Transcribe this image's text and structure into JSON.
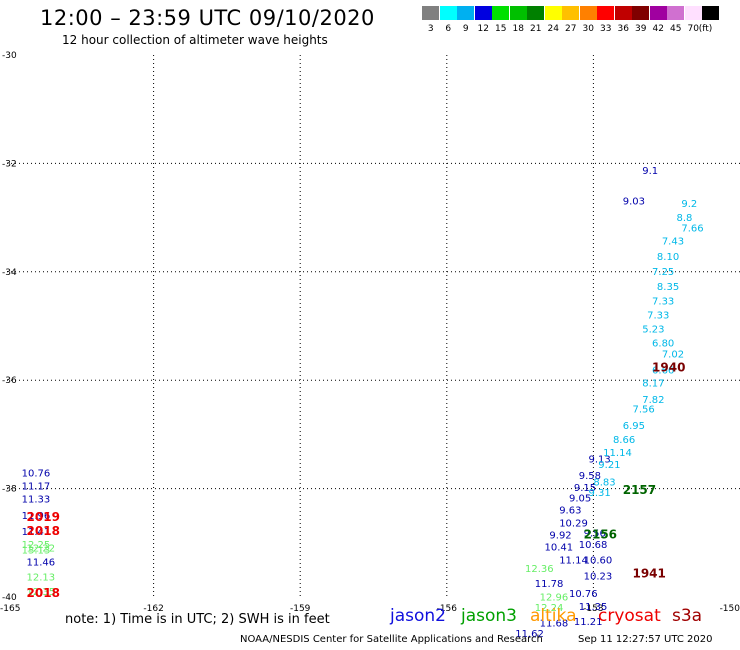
{
  "header": {
    "title": "12:00 – 23:59 UTC 09/10/2020",
    "subtitle": "12 hour collection of altimeter wave heights"
  },
  "legend": {
    "unit": "(ft)",
    "items": [
      {
        "label": "3",
        "color": "#808080"
      },
      {
        "label": "6",
        "color": "#00ffff"
      },
      {
        "label": "9",
        "color": "#00b0f0"
      },
      {
        "label": "12",
        "color": "#0000e0"
      },
      {
        "label": "15",
        "color": "#00e000"
      },
      {
        "label": "18",
        "color": "#00c000"
      },
      {
        "label": "21",
        "color": "#008000"
      },
      {
        "label": "24",
        "color": "#ffff00"
      },
      {
        "label": "27",
        "color": "#ffc000"
      },
      {
        "label": "30",
        "color": "#ff8000"
      },
      {
        "label": "33",
        "color": "#ff0000"
      },
      {
        "label": "36",
        "color": "#c00000"
      },
      {
        "label": "39",
        "color": "#800000"
      },
      {
        "label": "42",
        "color": "#a000a0"
      },
      {
        "label": "45",
        "color": "#d070d0"
      },
      {
        "label": "70",
        "color": "#ffe0ff"
      },
      {
        "label": "",
        "color": "#000000"
      }
    ]
  },
  "chart_data": {
    "type": "scatter",
    "xlim": [
      -165,
      -150
    ],
    "ylim": [
      -40,
      -30
    ],
    "xticks": [
      {
        "value": -165,
        "label": "-165"
      },
      {
        "value": -162,
        "label": "-162"
      },
      {
        "value": -159,
        "label": "-159"
      },
      {
        "value": -156,
        "label": "-156"
      },
      {
        "value": -153,
        "label": "-153"
      },
      {
        "value": -150,
        "label": "-150"
      }
    ],
    "yticks": [
      {
        "value": -30,
        "label": "-30"
      },
      {
        "value": -32,
        "label": "-32"
      },
      {
        "value": -34,
        "label": "-34"
      },
      {
        "value": -36,
        "label": "-36"
      },
      {
        "value": -38,
        "label": "-38"
      },
      {
        "value": -40,
        "label": "-40"
      }
    ],
    "grid": "dotted",
    "series": [
      {
        "color": "#0000aa",
        "points": [
          {
            "x": -164.7,
            "y": -37.78,
            "label": "10.76"
          },
          {
            "x": -164.7,
            "y": -38.02,
            "label": "11.17"
          },
          {
            "x": -164.7,
            "y": -38.26,
            "label": "11.33"
          },
          {
            "x": -164.7,
            "y": -38.56,
            "label": "11.96"
          },
          {
            "x": -164.7,
            "y": -38.86,
            "label": "11.41"
          },
          {
            "x": -164.6,
            "y": -39.42,
            "label": "11.46"
          },
          {
            "x": -152.0,
            "y": -32.2,
            "label": "9.1"
          },
          {
            "x": -152.4,
            "y": -32.76,
            "label": "9.03"
          },
          {
            "x": -153.1,
            "y": -37.52,
            "label": "9.13"
          },
          {
            "x": -153.3,
            "y": -37.82,
            "label": "9.58"
          },
          {
            "x": -153.4,
            "y": -38.04,
            "label": "9.15"
          },
          {
            "x": -153.5,
            "y": -38.24,
            "label": "9.05"
          },
          {
            "x": -153.7,
            "y": -38.46,
            "label": "9.63"
          },
          {
            "x": -153.7,
            "y": -38.7,
            "label": "10.29"
          },
          {
            "x": -153.2,
            "y": -38.88,
            "label": "9.56"
          },
          {
            "x": -153.9,
            "y": -38.92,
            "label": "9.92"
          },
          {
            "x": -154.0,
            "y": -39.14,
            "label": "10.41"
          },
          {
            "x": -153.3,
            "y": -39.1,
            "label": "10.68"
          },
          {
            "x": -153.7,
            "y": -39.38,
            "label": "11.14"
          },
          {
            "x": -153.2,
            "y": -39.38,
            "label": "10.60"
          },
          {
            "x": -153.2,
            "y": -39.68,
            "label": "10.23"
          },
          {
            "x": -154.2,
            "y": -39.82,
            "label": "11.78"
          },
          {
            "x": -153.5,
            "y": -40.0,
            "label": "10.76"
          },
          {
            "x": -153.3,
            "y": -40.24,
            "label": "11.35"
          },
          {
            "x": -153.4,
            "y": -40.52,
            "label": "11.21"
          },
          {
            "x": -154.1,
            "y": -40.54,
            "label": "11.68"
          },
          {
            "x": -154.6,
            "y": -40.74,
            "label": "11.62"
          }
        ]
      },
      {
        "color": "#66ee66",
        "points": [
          {
            "x": -164.7,
            "y": -39.1,
            "label": "12.25"
          },
          {
            "x": -164.7,
            "y": -39.2,
            "label": "13.13"
          },
          {
            "x": -164.6,
            "y": -39.16,
            "label": "12.22"
          },
          {
            "x": -164.6,
            "y": -39.7,
            "label": "12.13"
          },
          {
            "x": -164.6,
            "y": -39.96,
            "label": "12.35"
          },
          {
            "x": -154.4,
            "y": -39.54,
            "label": "12.36"
          },
          {
            "x": -154.1,
            "y": -40.06,
            "label": "12.96"
          },
          {
            "x": -154.2,
            "y": -40.26,
            "label": "12.24"
          }
        ]
      },
      {
        "color": "#00b8e8",
        "points": [
          {
            "x": -151.2,
            "y": -32.8,
            "label": "9.2"
          },
          {
            "x": -151.3,
            "y": -33.06,
            "label": "8.8"
          },
          {
            "x": -151.2,
            "y": -33.26,
            "label": "7.66"
          },
          {
            "x": -151.6,
            "y": -33.5,
            "label": "7.43"
          },
          {
            "x": -151.7,
            "y": -33.78,
            "label": "8.10"
          },
          {
            "x": -151.8,
            "y": -34.06,
            "label": "7.25"
          },
          {
            "x": -151.7,
            "y": -34.34,
            "label": "8.35"
          },
          {
            "x": -151.8,
            "y": -34.6,
            "label": "7.33"
          },
          {
            "x": -151.9,
            "y": -34.86,
            "label": "7.33"
          },
          {
            "x": -152.0,
            "y": -35.12,
            "label": "5.23"
          },
          {
            "x": -151.8,
            "y": -35.38,
            "label": "6.80"
          },
          {
            "x": -151.6,
            "y": -35.58,
            "label": "7.02"
          },
          {
            "x": -151.8,
            "y": -35.88,
            "label": "6.66"
          },
          {
            "x": -152.0,
            "y": -36.12,
            "label": "8.17"
          },
          {
            "x": -152.0,
            "y": -36.42,
            "label": "7.82"
          },
          {
            "x": -152.2,
            "y": -36.6,
            "label": "7.56"
          },
          {
            "x": -152.4,
            "y": -36.9,
            "label": "6.95"
          },
          {
            "x": -152.6,
            "y": -37.16,
            "label": "8.66"
          },
          {
            "x": -152.8,
            "y": -37.4,
            "label": "11.14"
          },
          {
            "x": -152.9,
            "y": -37.62,
            "label": "9.21"
          },
          {
            "x": -153.0,
            "y": -37.94,
            "label": "8.83"
          },
          {
            "x": -153.1,
            "y": -38.14,
            "label": "9.31"
          }
        ]
      },
      {
        "color": "#006400",
        "points": [
          {
            "x": -152.4,
            "y": -38.1,
            "label": "2157"
          },
          {
            "x": -153.2,
            "y": -38.92,
            "label": "2156"
          }
        ]
      },
      {
        "color": "#ee0000",
        "points": [
          {
            "x": -164.6,
            "y": -38.6,
            "label": "2019"
          },
          {
            "x": -164.6,
            "y": -38.86,
            "label": "2018"
          },
          {
            "x": -164.6,
            "y": -40.0,
            "label": "2018"
          }
        ]
      },
      {
        "color": "#7a0000",
        "points": [
          {
            "x": -151.8,
            "y": -35.84,
            "label": "1940"
          },
          {
            "x": -152.2,
            "y": -39.64,
            "label": "1941"
          }
        ]
      }
    ]
  },
  "footer": {
    "note": "note: 1) Time is in UTC; 2) SWH is in feet",
    "missions": [
      {
        "name": "jason2",
        "color": "#1010dd"
      },
      {
        "name": "jason3",
        "color": "#00a000"
      },
      {
        "name": "altika",
        "color": "#ff9900"
      },
      {
        "name": "cryosat",
        "color": "#ee0000"
      },
      {
        "name": "s3a",
        "color": "#a00000"
      }
    ],
    "credit": "NOAA/NESDIS Center for Satellite Applications and Research",
    "timestamp": "Sep 11 12:27:57 UTC 2020"
  }
}
